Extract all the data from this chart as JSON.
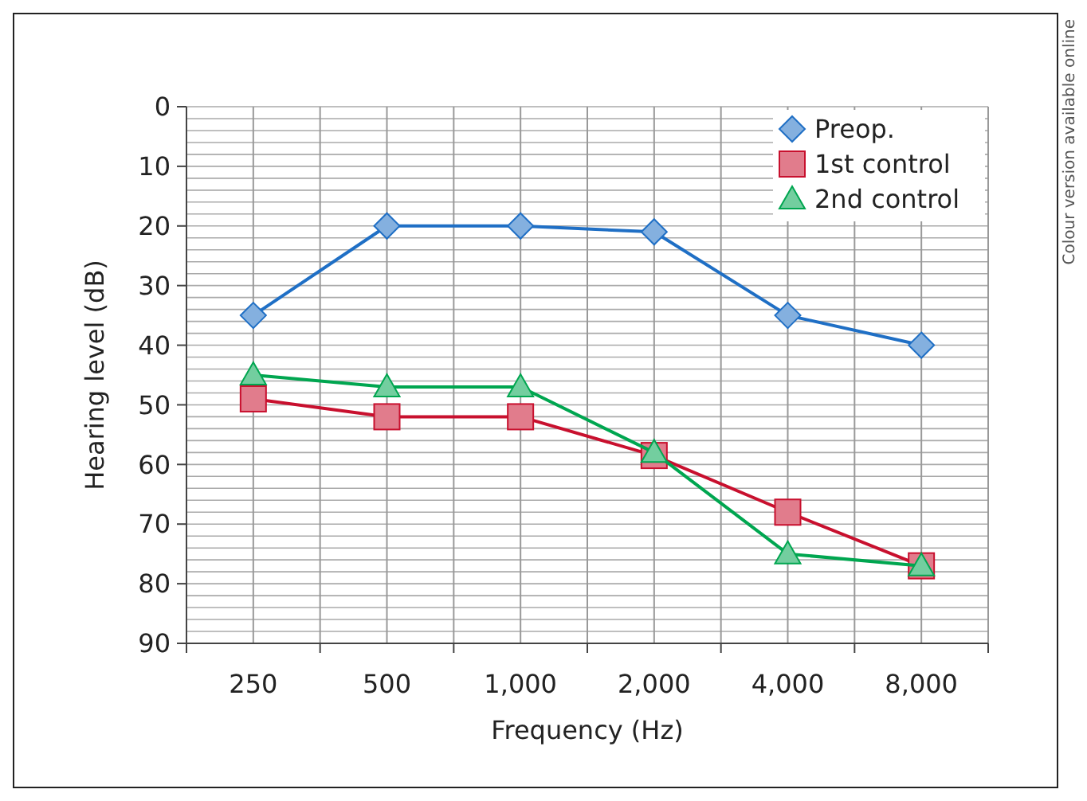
{
  "chart_data": {
    "type": "line",
    "xlabel": "Frequency (Hz)",
    "ylabel": "Hearing level (dB)",
    "categories": [
      "250",
      "500",
      "1,000",
      "2,000",
      "4,000",
      "8,000"
    ],
    "series": [
      {
        "name": "Preop.",
        "color": "#1f6fc5",
        "marker": "diamond",
        "values": [
          35,
          20,
          20,
          21,
          35,
          40
        ]
      },
      {
        "name": "1st control",
        "color": "#c8102e",
        "marker": "square",
        "values": [
          49,
          52,
          52,
          58.5,
          68,
          77
        ]
      },
      {
        "name": "2nd control",
        "color": "#00a650",
        "marker": "triangle",
        "values": [
          45,
          47,
          47,
          58,
          75,
          77
        ]
      }
    ],
    "ylim": [
      90,
      0
    ],
    "yticks": [
      0,
      10,
      20,
      30,
      40,
      50,
      60,
      70,
      80,
      90
    ],
    "grid": true,
    "legend": "top right",
    "annotations": [
      "Colour version available online"
    ]
  }
}
